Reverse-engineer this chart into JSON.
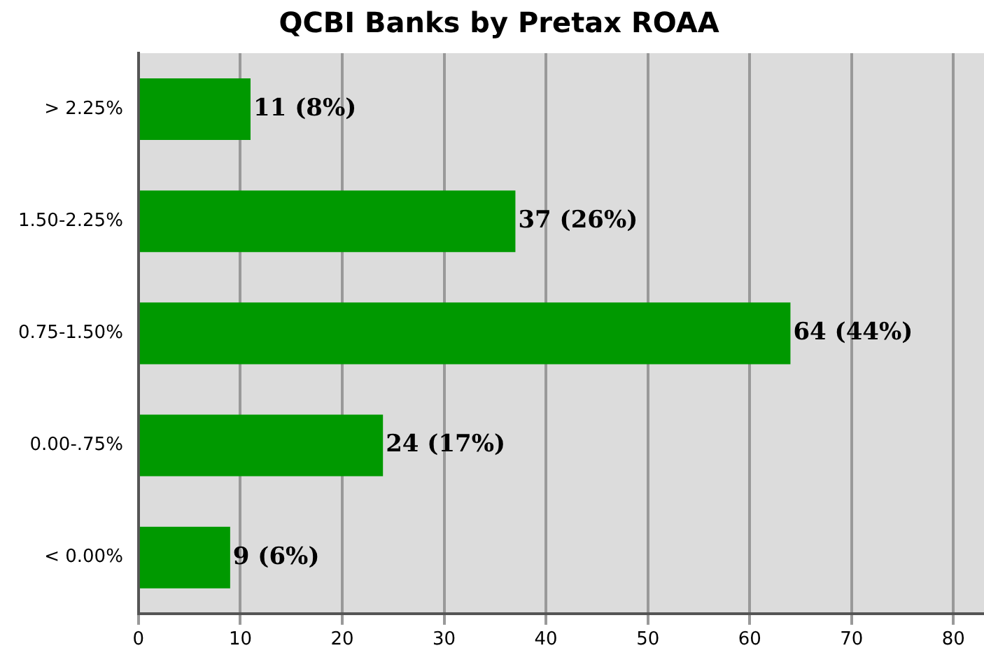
{
  "chart_data": {
    "type": "bar",
    "orientation": "horizontal",
    "title": "QCBI Banks by Pretax ROAA",
    "categories": [
      "> 2.25%",
      "1.50-2.25%",
      "0.75-1.50%",
      "0.00-.75%",
      "< 0.00%"
    ],
    "values": [
      11,
      37,
      64,
      24,
      9
    ],
    "value_labels": [
      "11 (8%)",
      "37 (26%)",
      "64 (44%)",
      "24 (17%)",
      "9 (6%)"
    ],
    "color": "#009900",
    "xlim": [
      0,
      83
    ],
    "xticks": [
      0,
      10,
      20,
      30,
      40,
      50,
      60,
      70,
      80
    ],
    "grid": "x",
    "legend": false
  }
}
